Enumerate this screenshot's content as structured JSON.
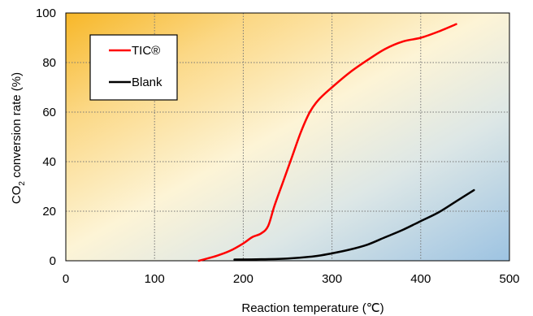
{
  "chart_data": {
    "type": "line",
    "title": "",
    "xlabel": "Reaction temperature (℃)",
    "ylabel_main": "CO",
    "ylabel_sub": "2",
    "ylabel_rest": " conversion rate (%)",
    "xlim": [
      0,
      500
    ],
    "ylim": [
      0,
      100
    ],
    "x_ticks": [
      "0",
      "100",
      "200",
      "300",
      "400",
      "500"
    ],
    "y_ticks": [
      "0",
      "20",
      "40",
      "60",
      "80",
      "100"
    ],
    "grid": "dotted",
    "legend_position": "top-left",
    "series": [
      {
        "name": "TIC®",
        "color": "#ff0000",
        "points": [
          [
            150,
            0
          ],
          [
            170,
            2
          ],
          [
            185,
            4
          ],
          [
            200,
            7
          ],
          [
            210,
            9.5
          ],
          [
            220,
            11
          ],
          [
            228,
            14
          ],
          [
            235,
            22
          ],
          [
            245,
            32
          ],
          [
            255,
            42
          ],
          [
            265,
            52
          ],
          [
            275,
            60
          ],
          [
            285,
            65
          ],
          [
            300,
            70
          ],
          [
            320,
            76
          ],
          [
            340,
            81
          ],
          [
            360,
            85.5
          ],
          [
            380,
            88.5
          ],
          [
            400,
            90
          ],
          [
            420,
            92.5
          ],
          [
            440,
            95.5
          ]
        ]
      },
      {
        "name": "Blank",
        "color": "#000000",
        "points": [
          [
            190,
            0.5
          ],
          [
            220,
            0.6
          ],
          [
            250,
            0.9
          ],
          [
            280,
            1.8
          ],
          [
            300,
            3
          ],
          [
            320,
            4.5
          ],
          [
            340,
            6.5
          ],
          [
            360,
            9.5
          ],
          [
            380,
            12.5
          ],
          [
            400,
            16
          ],
          [
            420,
            19.5
          ],
          [
            440,
            24
          ],
          [
            460,
            28.5
          ]
        ]
      }
    ]
  }
}
